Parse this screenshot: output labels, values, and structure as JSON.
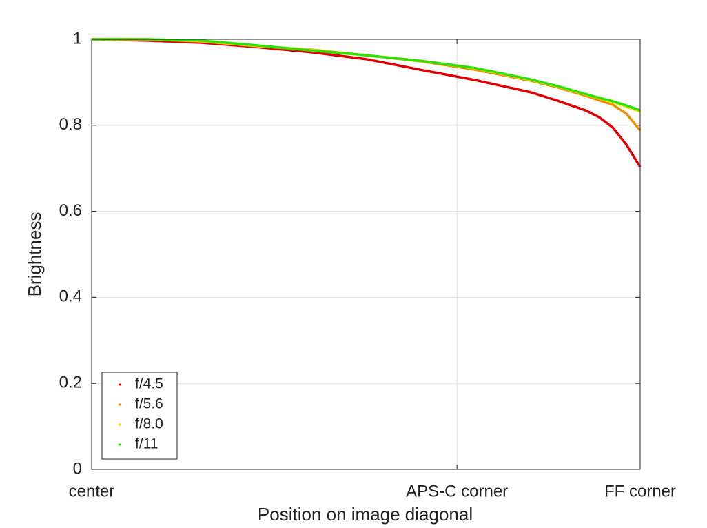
{
  "chart_data": {
    "type": "line",
    "xlabel": "Position on image diagonal",
    "ylabel": "Brightness",
    "x": [
      0,
      0.1,
      0.2,
      0.3,
      0.4,
      0.5,
      0.6,
      0.7,
      0.8,
      0.85,
      0.9,
      0.925,
      0.95,
      0.975,
      1
    ],
    "series": [
      {
        "name": "f/4.5",
        "color": "#e00000",
        "values": [
          1.0,
          0.997,
          0.992,
          0.982,
          0.97,
          0.954,
          0.929,
          0.905,
          0.877,
          0.857,
          0.835,
          0.819,
          0.795,
          0.755,
          0.703
        ]
      },
      {
        "name": "f/5.6",
        "color": "#f09000",
        "values": [
          1.0,
          1.0,
          0.995,
          0.984,
          0.976,
          0.963,
          0.949,
          0.929,
          0.904,
          0.888,
          0.869,
          0.858,
          0.848,
          0.827,
          0.788
        ]
      },
      {
        "name": "f/8.0",
        "color": "#e8e800",
        "values": [
          1.0,
          1.0,
          0.996,
          0.985,
          0.975,
          0.963,
          0.95,
          0.932,
          0.906,
          0.89,
          0.872,
          0.863,
          0.854,
          0.843,
          0.832
        ]
      },
      {
        "name": "f/11",
        "color": "#30e000",
        "values": [
          1.0,
          1.0,
          0.997,
          0.986,
          0.974,
          0.963,
          0.95,
          0.933,
          0.907,
          0.891,
          0.873,
          0.864,
          0.856,
          0.846,
          0.835
        ]
      }
    ],
    "xlim": [
      0,
      1
    ],
    "xticks": [
      {
        "value": 0,
        "label": "center"
      },
      {
        "value": 0.666,
        "label": "APS-C corner"
      },
      {
        "value": 1,
        "label": "FF corner"
      }
    ],
    "ylim": [
      0,
      1
    ],
    "yticks": [
      0,
      0.2,
      0.4,
      0.6,
      0.8,
      1
    ],
    "grid": true,
    "legend": "lower left"
  }
}
